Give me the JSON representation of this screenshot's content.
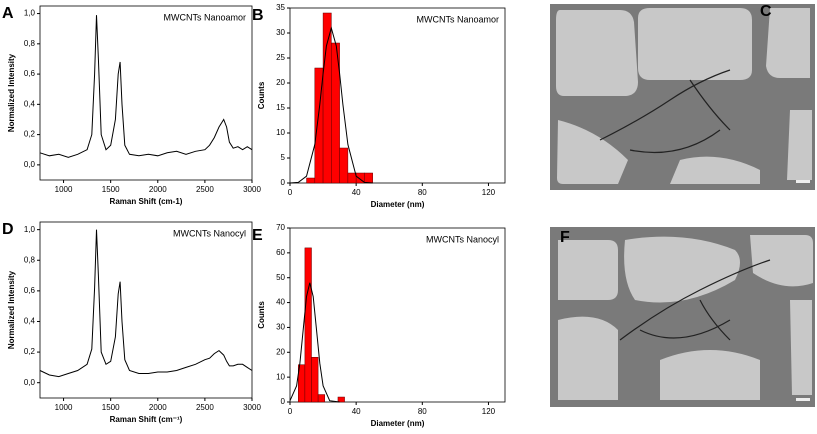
{
  "chart_data": [
    {
      "type": "line",
      "panel": "A",
      "annotation": "MWCNTs Nanoamor",
      "xlabel": "Raman Shift (cm-1)",
      "ylabel": "Normalized Intensity",
      "color": "#000000",
      "x": [
        750,
        850,
        950,
        1050,
        1150,
        1250,
        1300,
        1330,
        1350,
        1370,
        1400,
        1450,
        1500,
        1550,
        1580,
        1600,
        1620,
        1650,
        1700,
        1800,
        1900,
        2000,
        2100,
        2200,
        2300,
        2400,
        2500,
        2550,
        2600,
        2650,
        2700,
        2730,
        2760,
        2800,
        2850,
        2900,
        2950,
        3000
      ],
      "values": [
        0.08,
        0.06,
        0.07,
        0.05,
        0.07,
        0.1,
        0.2,
        0.6,
        0.99,
        0.7,
        0.2,
        0.1,
        0.13,
        0.3,
        0.6,
        0.68,
        0.4,
        0.13,
        0.07,
        0.06,
        0.07,
        0.06,
        0.08,
        0.09,
        0.07,
        0.09,
        0.1,
        0.13,
        0.18,
        0.25,
        0.3,
        0.25,
        0.15,
        0.11,
        0.12,
        0.1,
        0.12,
        0.1
      ],
      "xlim": [
        750,
        3000
      ],
      "xticks": [
        1000,
        1500,
        2000,
        2500,
        3000
      ],
      "ylim": [
        -0.1,
        1.05
      ],
      "yticks": [
        {
          "value": 0,
          "label": "0,0"
        },
        {
          "value": 0.2,
          "label": "0,2"
        },
        {
          "value": 0.4,
          "label": "0,4"
        },
        {
          "value": 0.6,
          "label": "0,6"
        },
        {
          "value": 0.8,
          "label": "0,8"
        },
        {
          "value": 1,
          "label": "1,0"
        }
      ]
    },
    {
      "type": "histogram",
      "panel": "B",
      "annotation": "MWCNTs Nanoamor",
      "xlabel": "Diameter (nm)",
      "ylabel": "Counts",
      "color": "#ff0000",
      "bins": [
        10,
        15,
        20,
        25,
        30,
        35,
        40,
        45,
        50
      ],
      "values": [
        1,
        23,
        34,
        28,
        7,
        2,
        2,
        2
      ],
      "fit": {
        "x": [
          0,
          5,
          10,
          15,
          18,
          20,
          22,
          25,
          28,
          30,
          32,
          35,
          40,
          45,
          50
        ],
        "values": [
          0,
          0.12,
          1.36,
          7.7,
          15.7,
          21.9,
          27.4,
          31,
          27.4,
          21.9,
          15.7,
          7.7,
          1.36,
          0.12,
          0
        ]
      },
      "xlim": [
        0,
        130
      ],
      "xticks": [
        0,
        40,
        80,
        120
      ],
      "ylim": [
        0,
        35
      ],
      "yticks": [
        0,
        5,
        10,
        15,
        20,
        25,
        30,
        35
      ]
    },
    {
      "type": "line",
      "panel": "D",
      "annotation": "MWCNTs Nanocyl",
      "xlabel": "Raman Shift (cm⁻¹)",
      "ylabel": "Normalized Intensity",
      "color": "#000000",
      "x": [
        750,
        850,
        950,
        1050,
        1150,
        1250,
        1300,
        1330,
        1350,
        1370,
        1400,
        1450,
        1500,
        1550,
        1580,
        1600,
        1620,
        1650,
        1700,
        1800,
        1900,
        2000,
        2100,
        2200,
        2300,
        2400,
        2500,
        2550,
        2600,
        2650,
        2700,
        2730,
        2760,
        2800,
        2850,
        2900,
        2950,
        3000
      ],
      "values": [
        0.08,
        0.05,
        0.04,
        0.06,
        0.08,
        0.12,
        0.22,
        0.62,
        1.0,
        0.7,
        0.2,
        0.12,
        0.14,
        0.3,
        0.58,
        0.66,
        0.4,
        0.15,
        0.08,
        0.06,
        0.06,
        0.07,
        0.07,
        0.08,
        0.1,
        0.12,
        0.15,
        0.16,
        0.19,
        0.21,
        0.18,
        0.14,
        0.11,
        0.11,
        0.12,
        0.12,
        0.1,
        0.08
      ],
      "xlim": [
        750,
        3000
      ],
      "xticks": [
        1000,
        1500,
        2000,
        2500,
        3000
      ],
      "ylim": [
        -0.1,
        1.05
      ],
      "yticks": [
        {
          "value": 0,
          "label": "0,0"
        },
        {
          "value": 0.2,
          "label": "0,2"
        },
        {
          "value": 0.4,
          "label": "0,4"
        },
        {
          "value": 0.6,
          "label": "0,6"
        },
        {
          "value": 0.8,
          "label": "0,8"
        },
        {
          "value": 1,
          "label": "1,0"
        }
      ]
    },
    {
      "type": "histogram",
      "panel": "E",
      "annotation": "MWCNTs Nanocyl",
      "xlabel": "Diameter (nm)",
      "ylabel": "Counts",
      "color": "#ff0000",
      "bins": [
        5,
        9,
        13,
        17,
        21,
        25,
        29,
        33
      ],
      "values": [
        15,
        62,
        18,
        3,
        0,
        0,
        2
      ],
      "fit": {
        "x": [
          0,
          4,
          6,
          8,
          10,
          12,
          14,
          16,
          18,
          20,
          24,
          30
        ],
        "values": [
          0.53,
          6.5,
          15.6,
          29.1,
          42.4,
          48,
          42.4,
          29.1,
          15.6,
          6.5,
          0.53,
          0
        ]
      },
      "xlim": [
        0,
        130
      ],
      "xticks": [
        0,
        40,
        80,
        120
      ],
      "ylim": [
        0,
        70
      ],
      "yticks": [
        0,
        10,
        20,
        30,
        40,
        50,
        60,
        70
      ]
    }
  ],
  "images": [
    {
      "panel": "C"
    },
    {
      "panel": "F"
    }
  ]
}
